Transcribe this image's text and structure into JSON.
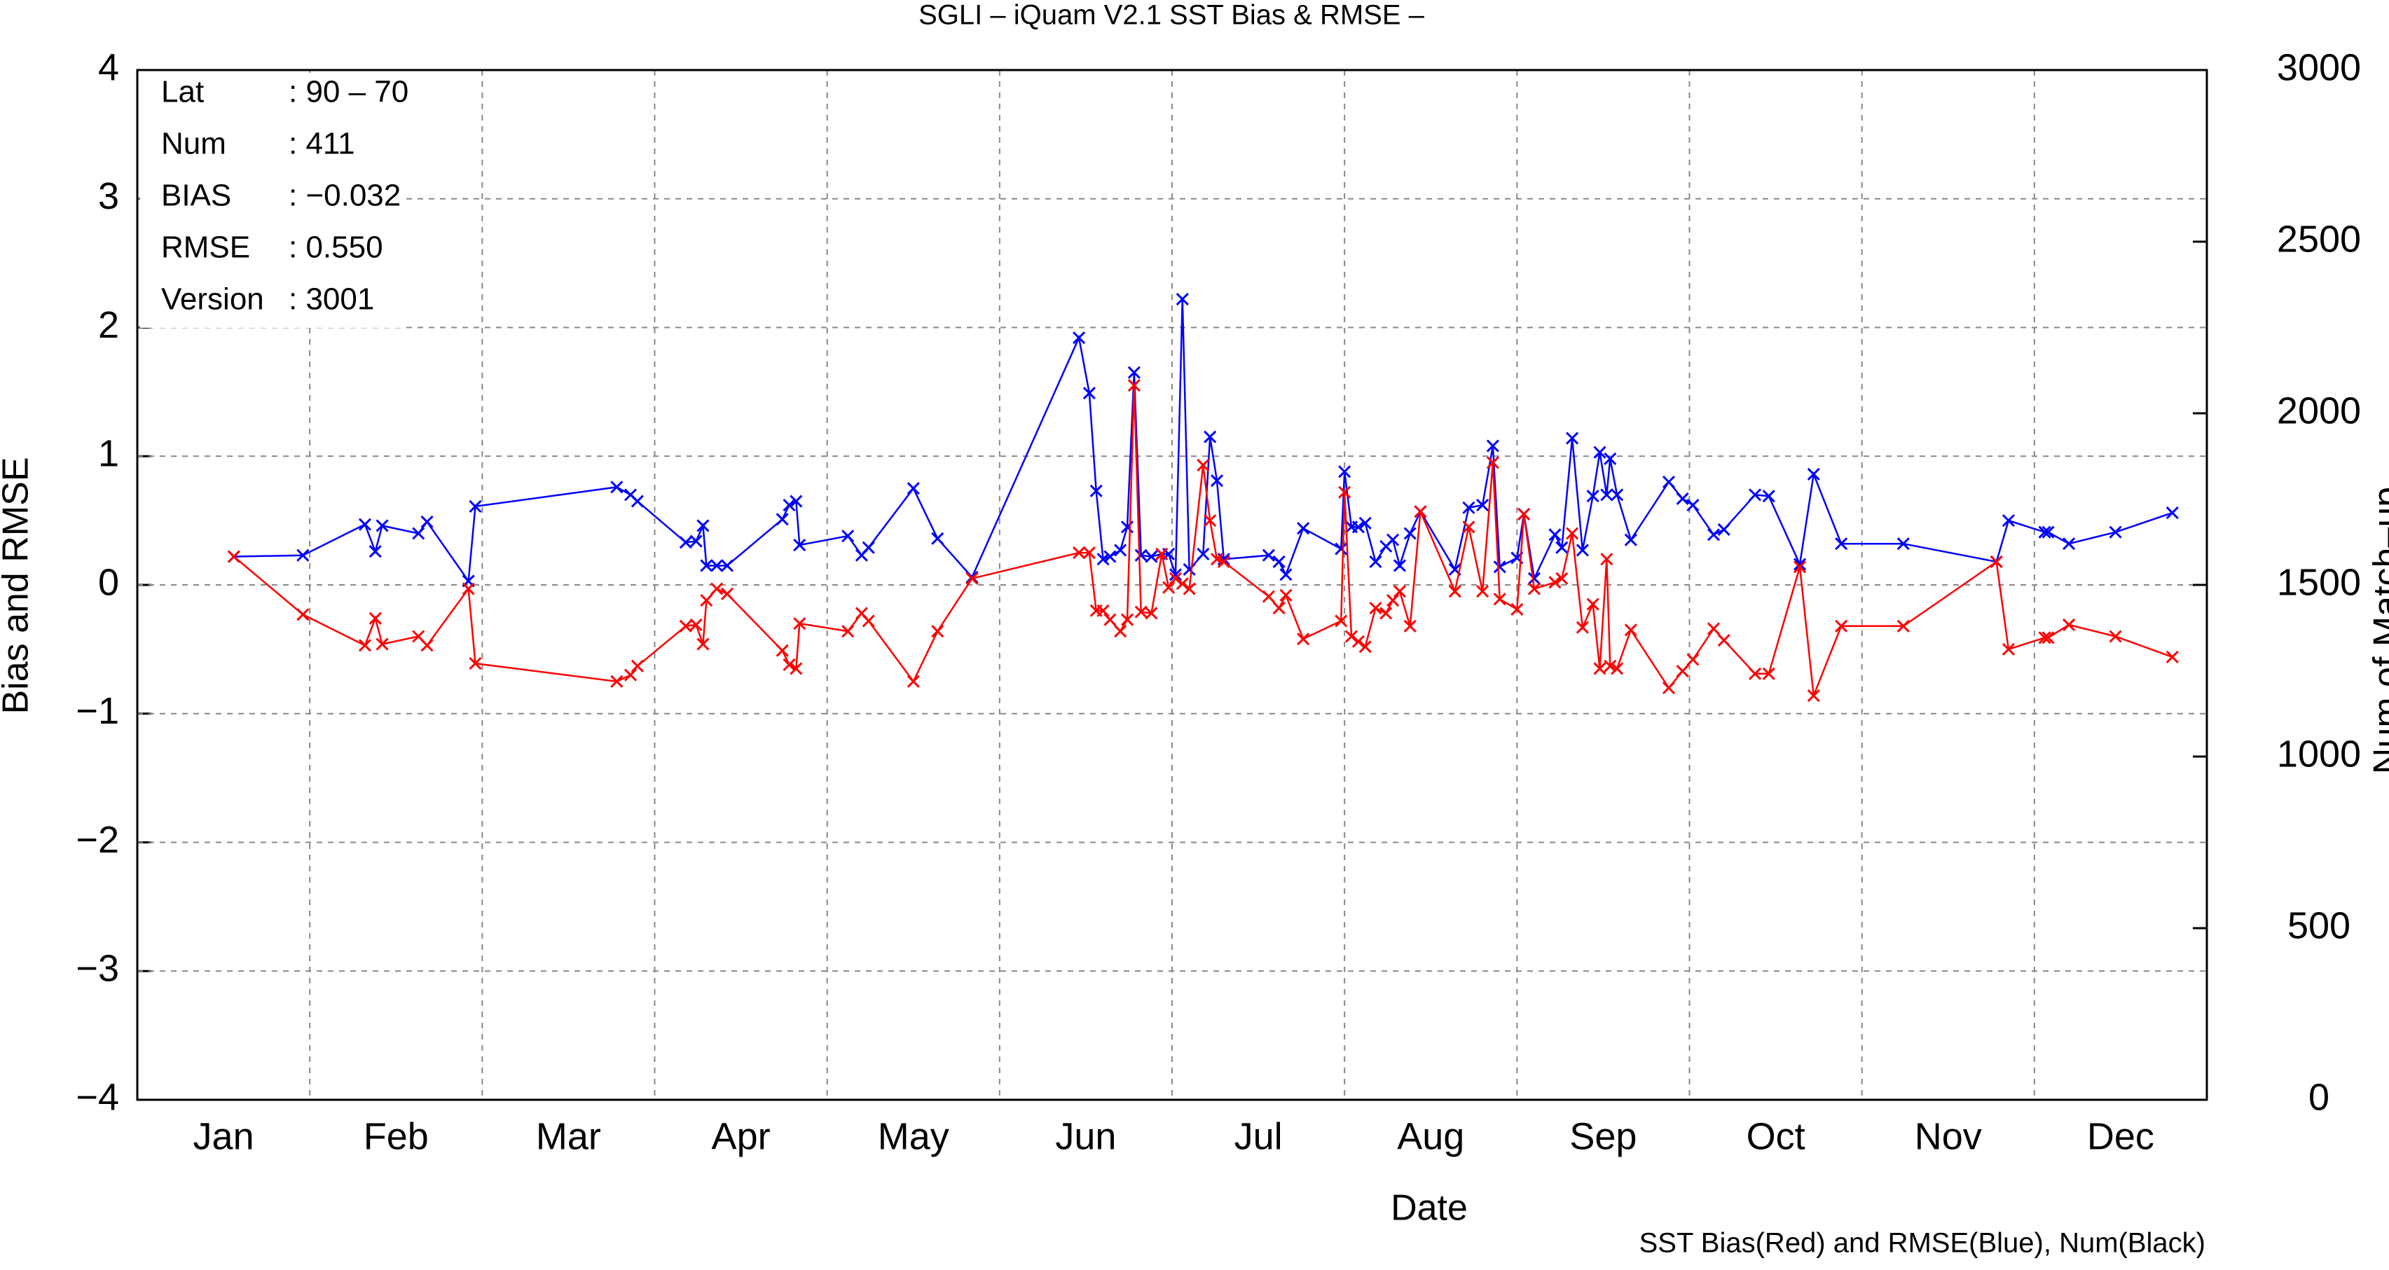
{
  "chart_data": {
    "type": "line",
    "title": "SGLI – iQuam V2.1 SST Bias & RMSE  –",
    "xlabel": "Date",
    "ylabel": "Bias and RMSE",
    "y2label": "Num of Match–up",
    "footer": "SST Bias(Red) and RMSE(Blue), Num(Black)",
    "annotations": [
      [
        "Lat",
        ": 90 – 70"
      ],
      [
        "Num",
        ": 411"
      ],
      [
        "BIAS",
        ": −0.032"
      ],
      [
        "RMSE",
        ": 0.550"
      ],
      [
        "Version",
        ": 3001"
      ]
    ],
    "xlim": [
      0,
      12
    ],
    "xticks": [
      {
        "value": 0.5,
        "label": "Jan"
      },
      {
        "value": 1.5,
        "label": "Feb"
      },
      {
        "value": 2.5,
        "label": "Mar"
      },
      {
        "value": 3.5,
        "label": "Apr"
      },
      {
        "value": 4.5,
        "label": "May"
      },
      {
        "value": 5.5,
        "label": "Jun"
      },
      {
        "value": 6.5,
        "label": "Jul"
      },
      {
        "value": 7.5,
        "label": "Aug"
      },
      {
        "value": 8.5,
        "label": "Sep"
      },
      {
        "value": 9.5,
        "label": "Oct"
      },
      {
        "value": 10.5,
        "label": "Nov"
      },
      {
        "value": 11.5,
        "label": "Dec"
      }
    ],
    "ylim": [
      -4,
      4
    ],
    "yticks": [
      {
        "value": -4,
        "label": "−4"
      },
      {
        "value": -3,
        "label": "−3"
      },
      {
        "value": -2,
        "label": "−2"
      },
      {
        "value": -1,
        "label": "−1"
      },
      0,
      1,
      2,
      3,
      4
    ],
    "y2lim": [
      0,
      3000
    ],
    "y2ticks": [
      0,
      500,
      1000,
      1500,
      2000,
      2500,
      3000
    ],
    "grid": true,
    "x": [
      0.56,
      0.96,
      1.32,
      1.38,
      1.42,
      1.63,
      1.68,
      1.92,
      1.96,
      2.78,
      2.86,
      2.9,
      3.18,
      3.24,
      3.28,
      3.3,
      3.36,
      3.42,
      3.74,
      3.78,
      3.82,
      3.84,
      4.12,
      4.2,
      4.24,
      4.5,
      4.64,
      4.84,
      5.46,
      5.52,
      5.56,
      5.6,
      5.64,
      5.7,
      5.74,
      5.78,
      5.82,
      5.88,
      5.94,
      5.98,
      6.02,
      6.06,
      6.1,
      6.18,
      6.22,
      6.26,
      6.3,
      6.56,
      6.62,
      6.66,
      6.76,
      6.98,
      7.0,
      7.04,
      7.08,
      7.12,
      7.18,
      7.24,
      7.28,
      7.32,
      7.38,
      7.44,
      7.64,
      7.72,
      7.8,
      7.86,
      7.9,
      8.0,
      8.04,
      8.1,
      8.22,
      8.26,
      8.32,
      8.38,
      8.44,
      8.48,
      8.52,
      8.54,
      8.58,
      8.66,
      8.88,
      8.96,
      9.02,
      9.14,
      9.2,
      9.38,
      9.46,
      9.64,
      9.72,
      9.88,
      10.24,
      10.78,
      10.85,
      11.06,
      11.08,
      11.2,
      11.47,
      11.8
    ],
    "series": [
      {
        "name": "RMSE",
        "color": "#0000ff",
        "values": [
          0.22,
          0.23,
          0.47,
          0.26,
          0.46,
          0.4,
          0.49,
          0.03,
          0.61,
          0.76,
          0.7,
          0.65,
          0.33,
          0.34,
          0.46,
          0.15,
          0.15,
          0.15,
          0.51,
          0.62,
          0.65,
          0.31,
          0.38,
          0.23,
          0.29,
          0.75,
          0.36,
          0.06,
          1.92,
          1.49,
          0.73,
          0.2,
          0.22,
          0.27,
          0.45,
          1.65,
          0.23,
          0.22,
          0.24,
          0.24,
          0.08,
          2.22,
          0.12,
          0.24,
          1.15,
          0.81,
          0.2,
          0.23,
          0.18,
          0.08,
          0.44,
          0.28,
          0.88,
          0.45,
          0.45,
          0.48,
          0.18,
          0.3,
          0.35,
          0.15,
          0.4,
          0.57,
          0.12,
          0.6,
          0.62,
          1.08,
          0.14,
          0.21,
          0.55,
          0.05,
          0.39,
          0.29,
          1.14,
          0.27,
          0.69,
          1.03,
          0.7,
          0.98,
          0.7,
          0.35,
          0.8,
          0.67,
          0.62,
          0.39,
          0.43,
          0.7,
          0.69,
          0.16,
          0.86,
          0.32,
          0.32,
          0.18,
          0.5,
          0.41,
          0.41,
          0.32,
          0.41,
          0.56
        ]
      },
      {
        "name": "SST Bias",
        "color": "#ff0000",
        "values": [
          0.22,
          -0.23,
          -0.47,
          -0.26,
          -0.46,
          -0.4,
          -0.47,
          -0.03,
          -0.61,
          -0.75,
          -0.7,
          -0.63,
          -0.32,
          -0.31,
          -0.46,
          -0.12,
          -0.03,
          -0.07,
          -0.51,
          -0.62,
          -0.65,
          -0.3,
          -0.36,
          -0.22,
          -0.28,
          -0.75,
          -0.36,
          0.05,
          0.25,
          0.25,
          -0.2,
          -0.2,
          -0.27,
          -0.36,
          -0.27,
          1.55,
          -0.21,
          -0.22,
          0.24,
          -0.02,
          0.05,
          0.01,
          -0.03,
          0.93,
          0.5,
          0.2,
          0.18,
          -0.09,
          -0.18,
          -0.08,
          -0.42,
          -0.28,
          0.72,
          -0.4,
          -0.44,
          -0.48,
          -0.18,
          -0.22,
          -0.12,
          -0.05,
          -0.32,
          0.57,
          -0.05,
          0.45,
          -0.05,
          0.95,
          -0.11,
          -0.19,
          0.55,
          -0.03,
          0.02,
          0.05,
          0.4,
          -0.33,
          -0.15,
          -0.65,
          0.2,
          -0.63,
          -0.65,
          -0.35,
          -0.8,
          -0.67,
          -0.58,
          -0.34,
          -0.43,
          -0.69,
          -0.69,
          0.14,
          -0.86,
          -0.32,
          -0.32,
          0.18,
          -0.5,
          -0.41,
          -0.41,
          -0.31,
          -0.4,
          -0.56
        ]
      }
    ]
  }
}
